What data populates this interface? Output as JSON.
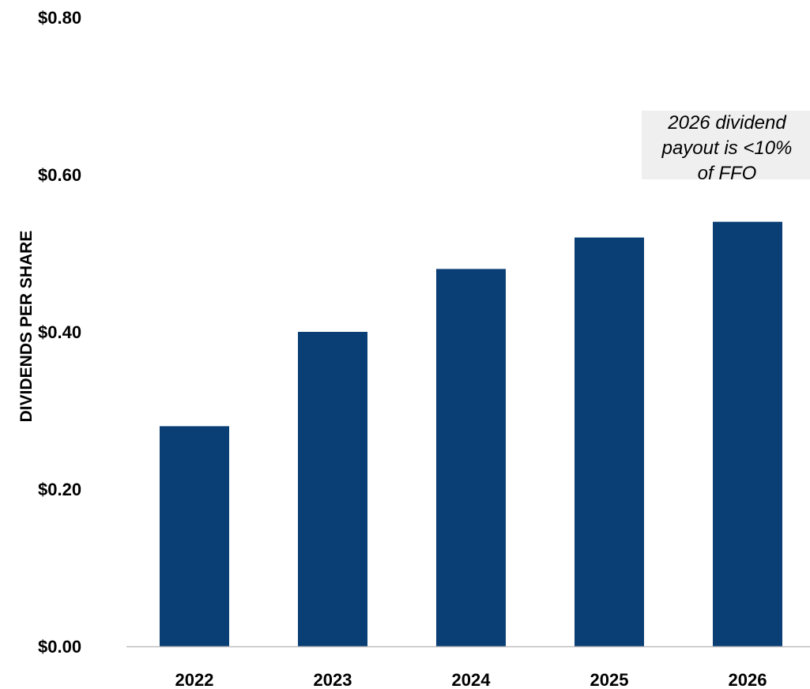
{
  "chart_data": {
    "type": "bar",
    "categories": [
      "2022",
      "2023",
      "2024",
      "2025",
      "2026"
    ],
    "values": [
      0.28,
      0.4,
      0.48,
      0.52,
      0.54
    ],
    "ylabel": "DIVIDENDS PER SHARE",
    "xlabel": "",
    "ylim": [
      0,
      0.8
    ],
    "yticks": [
      {
        "value": 0.0,
        "label": "$0.00"
      },
      {
        "value": 0.2,
        "label": "$0.20"
      },
      {
        "value": 0.4,
        "label": "$0.40"
      },
      {
        "value": 0.6,
        "label": "$0.60"
      },
      {
        "value": 0.8,
        "label": "$0.80"
      }
    ],
    "grid": false,
    "bar_color": "#0a3f75",
    "annotation": {
      "lines": [
        "2026 dividend",
        "payout is <10%",
        "of FFO"
      ],
      "background": "#efefef"
    }
  }
}
